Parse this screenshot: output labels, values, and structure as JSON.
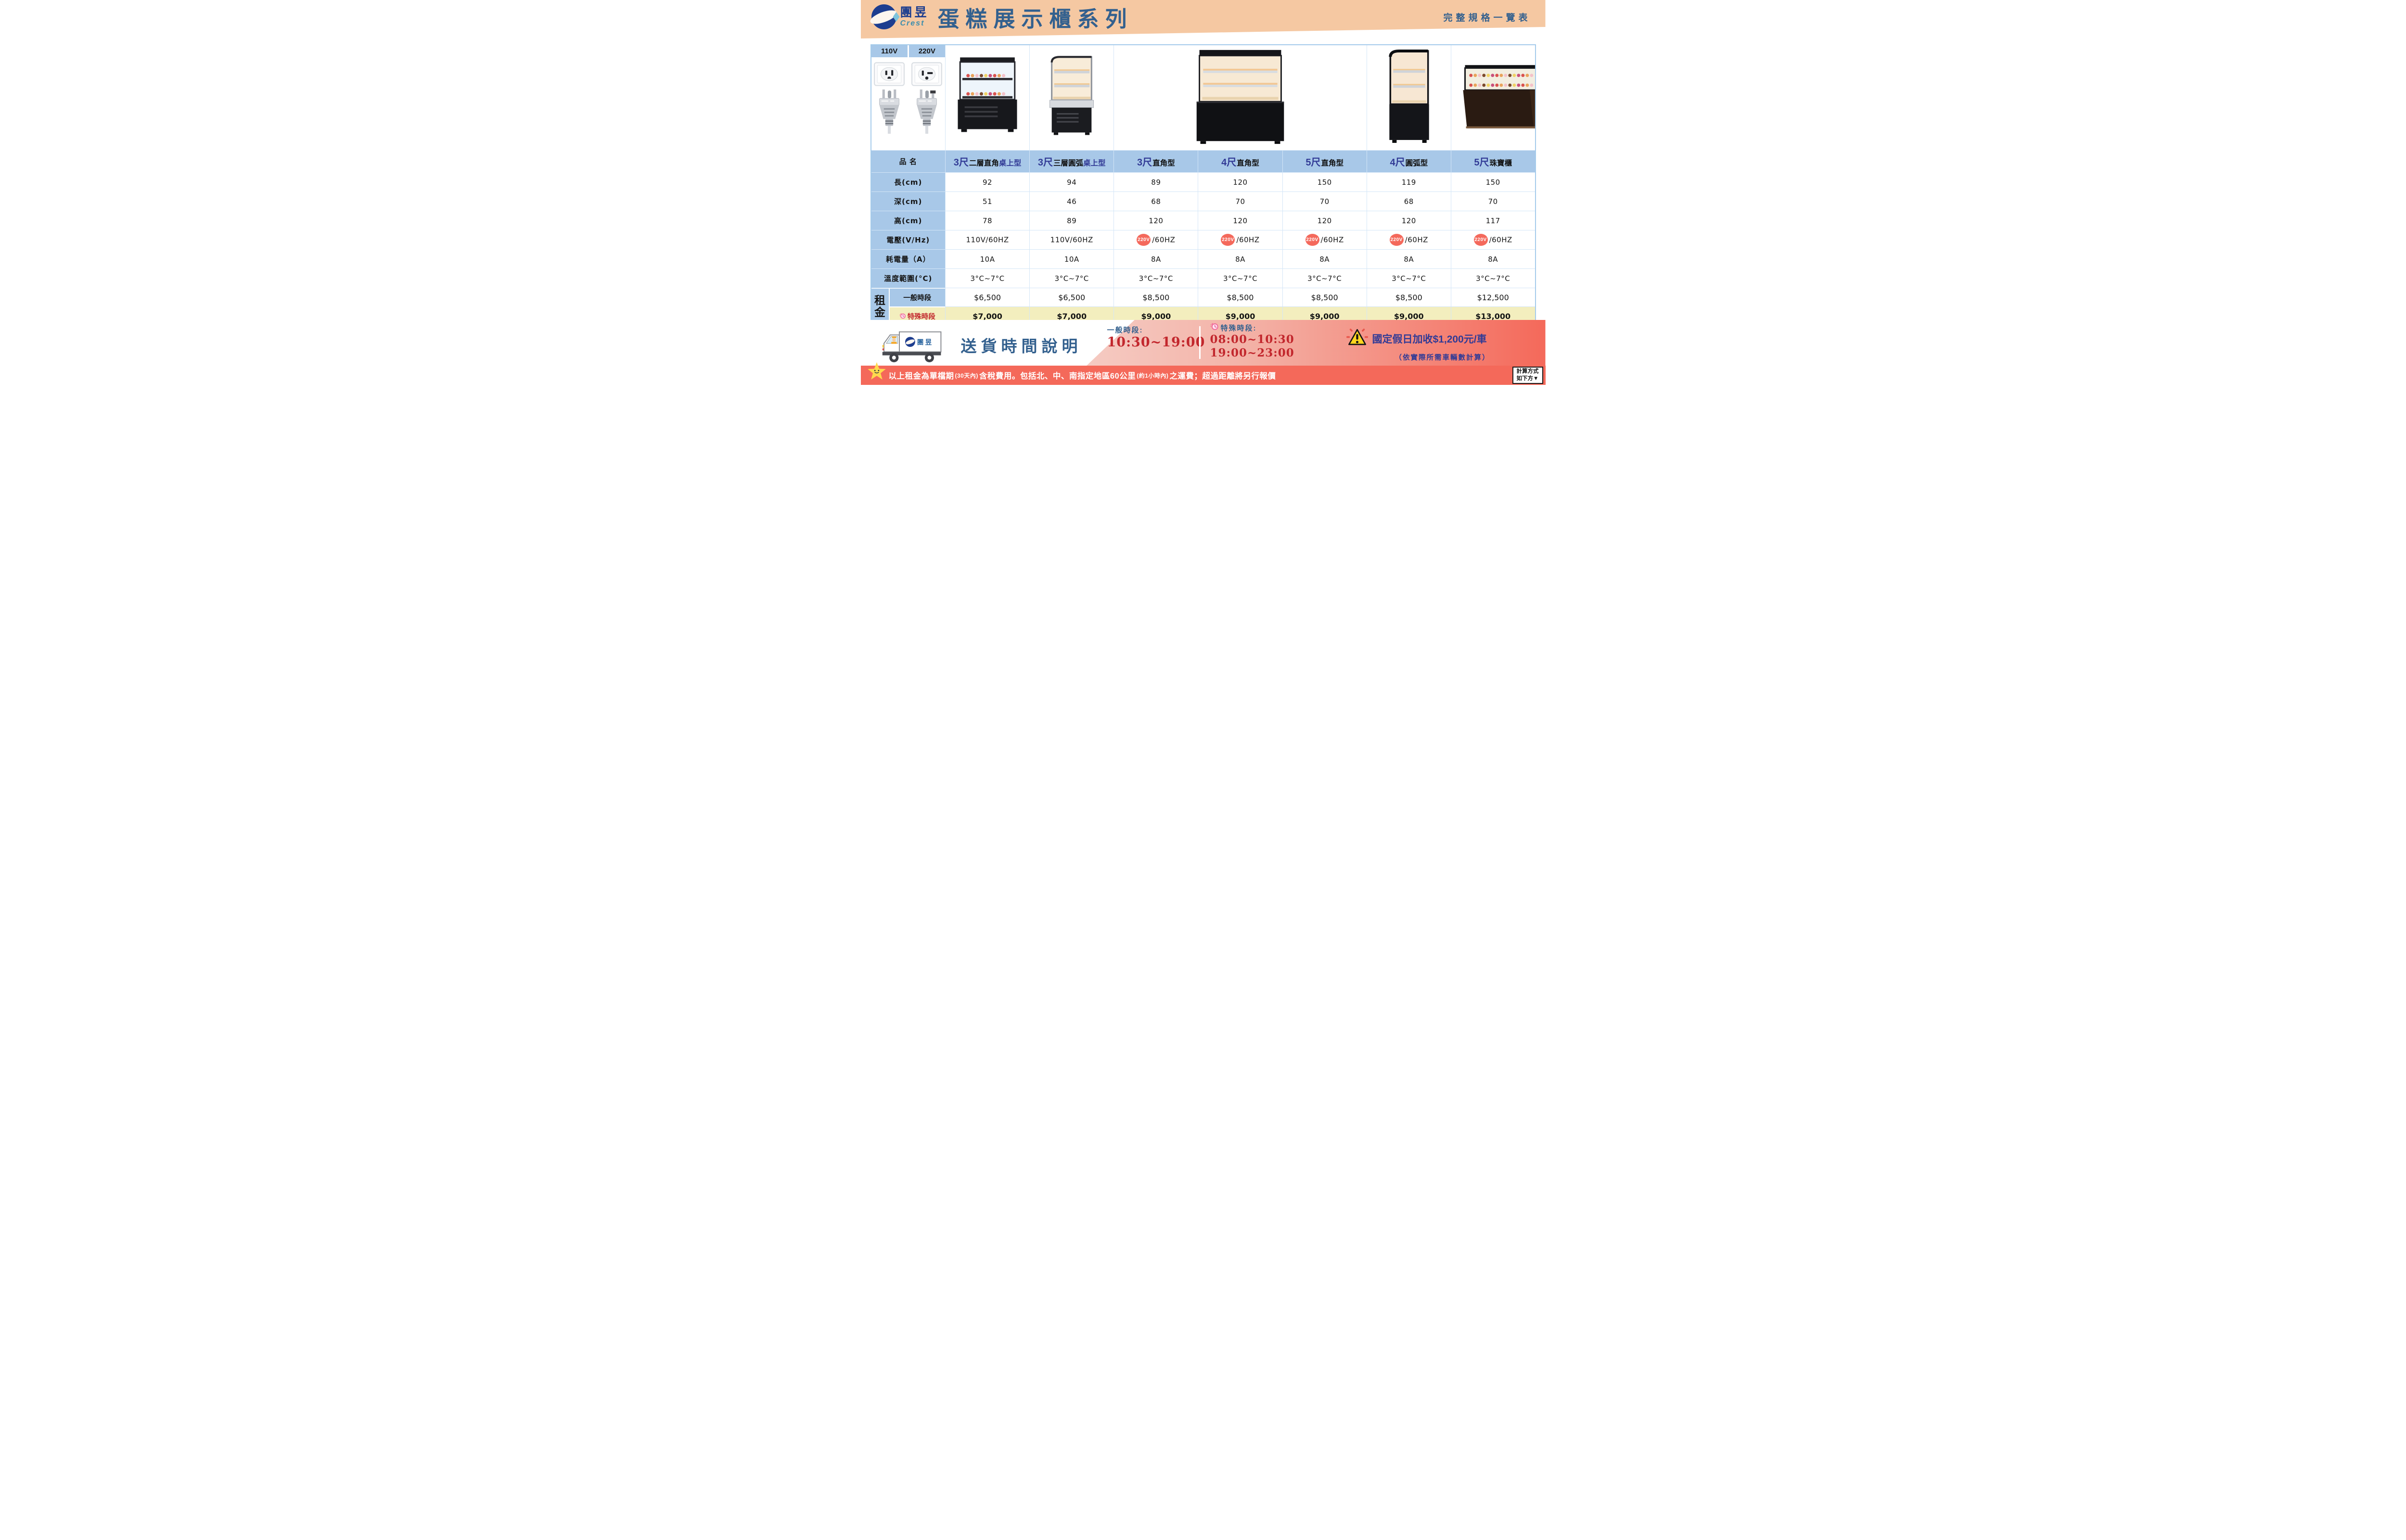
{
  "header": {
    "brand_zh": "團昱",
    "brand_en": "Crest",
    "title": "蛋糕展示櫃系列",
    "subtitle": "完整規格一覽表"
  },
  "voltage_legend": {
    "v110": "110V",
    "v220": "220V"
  },
  "table": {
    "row_labels": {
      "name": "品 名",
      "length": "長(cm)",
      "depth": "深(cm)",
      "height": "高(cm)",
      "voltage": "電壓(V/Hz)",
      "current": "耗電量（A）",
      "temp": "溫度範圍(°C)",
      "rent": "租金",
      "rent_normal": "一般時段",
      "rent_special": "特殊時段"
    },
    "columns": [
      {
        "name_prefix": "3尺",
        "name_mid": "二層直角",
        "name_suffix": "桌上型",
        "length": "92",
        "depth": "51",
        "height": "78",
        "voltage_badge": "",
        "voltage": "110V/60HZ",
        "current": "10A",
        "temp": "3°C~7°C",
        "rent_normal": "$6,500",
        "rent_special": "$7,000",
        "image": "square-tabletop-2tier"
      },
      {
        "name_prefix": "3尺",
        "name_mid": "三層圓弧",
        "name_suffix": "桌上型",
        "length": "94",
        "depth": "46",
        "height": "89",
        "voltage_badge": "",
        "voltage": "110V/60HZ",
        "current": "10A",
        "temp": "3°C~7°C",
        "rent_normal": "$6,500",
        "rent_special": "$7,000",
        "image": "curved-tabletop-3tier"
      },
      {
        "name_prefix": "3尺",
        "name_mid": "直角型",
        "name_suffix": "",
        "length": "89",
        "depth": "68",
        "height": "120",
        "voltage_badge": "220V",
        "voltage": "/60HZ",
        "current": "8A",
        "temp": "3°C~7°C",
        "rent_normal": "$8,500",
        "rent_special": "$9,000",
        "image": "square-floor-shared"
      },
      {
        "name_prefix": "4尺",
        "name_mid": "直角型",
        "name_suffix": "",
        "length": "120",
        "depth": "70",
        "height": "120",
        "voltage_badge": "220V",
        "voltage": "/60HZ",
        "current": "8A",
        "temp": "3°C~7°C",
        "rent_normal": "$8,500",
        "rent_special": "$9,000",
        "image": "square-floor-shared"
      },
      {
        "name_prefix": "5尺",
        "name_mid": "直角型",
        "name_suffix": "",
        "length": "150",
        "depth": "70",
        "height": "120",
        "voltage_badge": "220V",
        "voltage": "/60HZ",
        "current": "8A",
        "temp": "3°C~7°C",
        "rent_normal": "$8,500",
        "rent_special": "$9,000",
        "image": "square-floor-shared"
      },
      {
        "name_prefix": "4尺",
        "name_mid": "圓弧型",
        "name_suffix": "",
        "length": "119",
        "depth": "68",
        "height": "120",
        "voltage_badge": "220V",
        "voltage": "/60HZ",
        "current": "8A",
        "temp": "3°C~7°C",
        "rent_normal": "$8,500",
        "rent_special": "$9,000",
        "image": "curved-floor"
      },
      {
        "name_prefix": "5尺",
        "name_mid": "珠寶櫃",
        "name_suffix": "",
        "length": "150",
        "depth": "70",
        "height": "117",
        "voltage_badge": "220V",
        "voltage": "/60HZ",
        "current": "8A",
        "temp": "3°C~7°C",
        "rent_normal": "$12,500",
        "rent_special": "$13,000",
        "image": "jewel-counter"
      }
    ]
  },
  "delivery": {
    "title": "送貨時間說明",
    "normal_label": "一般時段:",
    "normal_time": "10:30~19:00",
    "special_label": "特殊時段:",
    "special_time1": "08:00~10:30",
    "special_time2": "19:00~23:00",
    "holiday_note": "國定假日加收$1,200元/車",
    "holiday_sub": "（依實際所需車輛數計算）"
  },
  "footer": {
    "note_seg1": "以上租金為單檔期",
    "note_small1": "(30天內)",
    "note_seg2": "含稅費用。包括北、中、南指定地區60公里",
    "note_small2": "(約1小時內)",
    "note_seg3": "之運費；超過距離將另行報價",
    "calc_line1": "計算方式",
    "calc_line2": "如下方▼"
  },
  "colors": {
    "header_band": "#F5C8A2",
    "title_navy": "#33608E",
    "logo_navy": "#1D3D8F",
    "crest_teal": "#3E8EAD",
    "cell_blue": "#A8C8E8",
    "grid_blue": "#A5CBEB",
    "special_yellow": "#F3EEBE",
    "price_red": "#C2272D",
    "badge_salmon": "#F4695C",
    "bar_salmon": "#F4695A",
    "note_indigo": "#303A96",
    "clock_pink": "#F2679A"
  }
}
